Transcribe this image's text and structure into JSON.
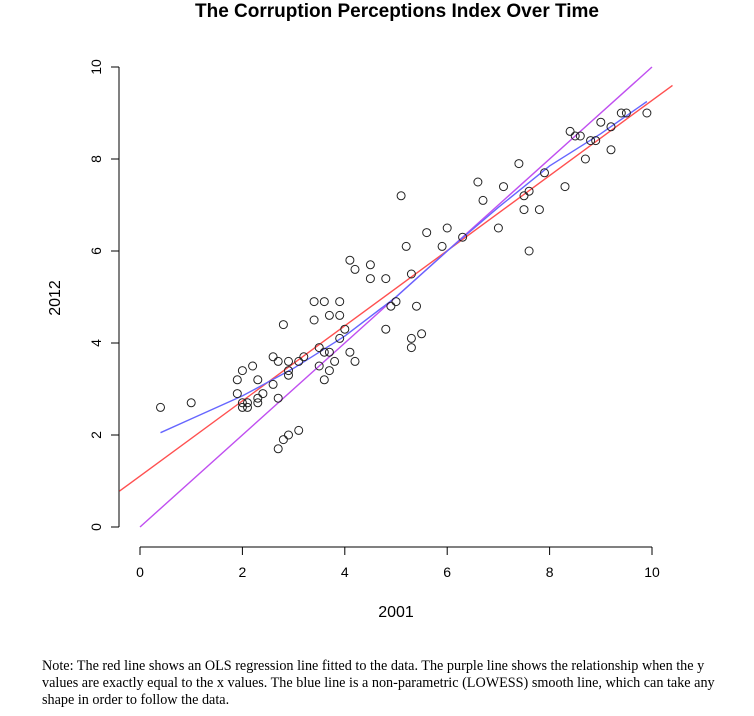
{
  "note": "Note: The red line shows an OLS regression line fitted to the data. The purple line shows the relationship when the y values are exactly equal to the x values. The blue line is a non-parametric (LOWESS) smooth line, which can take any shape in order to follow the data.",
  "chart_data": {
    "type": "scatter",
    "title": "The Corruption Perceptions Index Over Time",
    "xlabel": "2001",
    "ylabel": "2012",
    "xlim": [
      0,
      10
    ],
    "ylim": [
      0,
      10
    ],
    "xticks": [
      0,
      2,
      4,
      6,
      8,
      10
    ],
    "yticks": [
      0,
      2,
      4,
      6,
      8,
      10
    ],
    "grid": false,
    "points": [
      [
        0.4,
        2.6
      ],
      [
        1.0,
        2.7
      ],
      [
        1.9,
        3.2
      ],
      [
        1.9,
        2.9
      ],
      [
        2.0,
        2.7
      ],
      [
        2.0,
        2.6
      ],
      [
        2.0,
        3.4
      ],
      [
        2.1,
        2.6
      ],
      [
        2.1,
        2.7
      ],
      [
        2.2,
        3.5
      ],
      [
        2.3,
        3.2
      ],
      [
        2.3,
        2.8
      ],
      [
        2.3,
        2.7
      ],
      [
        2.4,
        2.9
      ],
      [
        2.6,
        3.1
      ],
      [
        2.6,
        3.7
      ],
      [
        2.7,
        3.6
      ],
      [
        2.7,
        2.8
      ],
      [
        2.7,
        1.7
      ],
      [
        2.8,
        1.9
      ],
      [
        2.8,
        4.4
      ],
      [
        2.9,
        2.0
      ],
      [
        2.9,
        3.6
      ],
      [
        2.9,
        3.4
      ],
      [
        2.9,
        3.3
      ],
      [
        3.1,
        3.6
      ],
      [
        3.1,
        2.1
      ],
      [
        3.2,
        3.7
      ],
      [
        3.4,
        4.5
      ],
      [
        3.4,
        4.9
      ],
      [
        3.5,
        3.9
      ],
      [
        3.5,
        3.5
      ],
      [
        3.6,
        4.9
      ],
      [
        3.6,
        3.8
      ],
      [
        3.6,
        3.2
      ],
      [
        3.7,
        3.8
      ],
      [
        3.7,
        3.4
      ],
      [
        3.7,
        4.6
      ],
      [
        3.8,
        3.6
      ],
      [
        3.9,
        4.9
      ],
      [
        3.9,
        4.6
      ],
      [
        3.9,
        4.1
      ],
      [
        4.0,
        4.3
      ],
      [
        4.1,
        3.8
      ],
      [
        4.1,
        5.8
      ],
      [
        4.2,
        5.6
      ],
      [
        4.2,
        3.6
      ],
      [
        4.5,
        5.7
      ],
      [
        4.5,
        5.4
      ],
      [
        4.8,
        5.4
      ],
      [
        4.8,
        4.3
      ],
      [
        4.9,
        4.8
      ],
      [
        5.0,
        4.9
      ],
      [
        5.1,
        7.2
      ],
      [
        5.2,
        6.1
      ],
      [
        5.3,
        5.5
      ],
      [
        5.3,
        4.1
      ],
      [
        5.3,
        3.9
      ],
      [
        5.4,
        4.8
      ],
      [
        5.5,
        4.2
      ],
      [
        5.6,
        6.4
      ],
      [
        5.9,
        6.1
      ],
      [
        6.0,
        6.5
      ],
      [
        6.3,
        6.3
      ],
      [
        6.6,
        7.5
      ],
      [
        6.7,
        7.1
      ],
      [
        7.0,
        6.5
      ],
      [
        7.1,
        7.4
      ],
      [
        7.4,
        7.9
      ],
      [
        7.5,
        6.9
      ],
      [
        7.5,
        7.2
      ],
      [
        7.6,
        7.3
      ],
      [
        7.6,
        6.0
      ],
      [
        7.8,
        6.9
      ],
      [
        7.9,
        7.7
      ],
      [
        8.3,
        7.4
      ],
      [
        8.4,
        8.6
      ],
      [
        8.5,
        8.5
      ],
      [
        8.6,
        8.5
      ],
      [
        8.7,
        8.0
      ],
      [
        8.8,
        8.4
      ],
      [
        8.9,
        8.4
      ],
      [
        9.0,
        8.8
      ],
      [
        9.2,
        8.7
      ],
      [
        9.2,
        8.2
      ],
      [
        9.4,
        9.0
      ],
      [
        9.5,
        9.0
      ],
      [
        9.9,
        9.0
      ]
    ],
    "lines": [
      {
        "type": "OLS regression",
        "color": "#ff5050",
        "x": [
          -0.4,
          10.4
        ],
        "y": [
          0.78,
          9.6
        ]
      },
      {
        "type": "identity y = x",
        "color": "#c04ff0",
        "x": [
          0,
          10
        ],
        "y": [
          0,
          10
        ]
      },
      {
        "type": "LOWESS smooth",
        "color": "#6666ff",
        "x": [
          0.4,
          1.0,
          2.0,
          3.0,
          4.0,
          5.0,
          6.0,
          7.0,
          8.0,
          9.0,
          9.9
        ],
        "y": [
          2.05,
          2.35,
          2.85,
          3.45,
          4.15,
          5.0,
          6.0,
          6.95,
          7.85,
          8.55,
          9.25
        ]
      }
    ]
  }
}
